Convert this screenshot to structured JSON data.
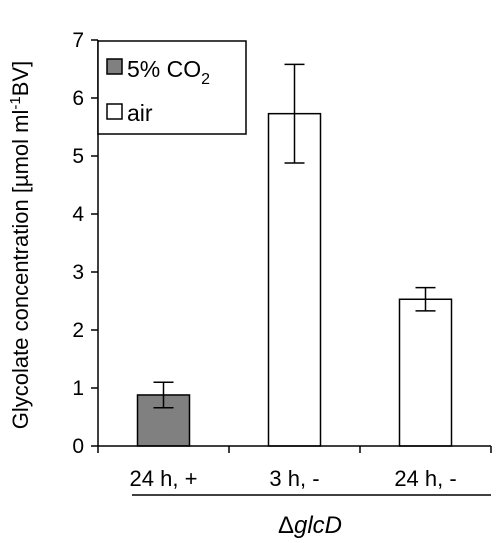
{
  "chart_data": {
    "type": "bar",
    "ylabel_main": "Glycolate concentration [µmol ml",
    "ylabel_sup": "-1",
    "ylabel_end": "BV]",
    "ylim": [
      0,
      7
    ],
    "yticks": [
      0,
      1,
      2,
      3,
      4,
      5,
      6,
      7
    ],
    "categories": [
      "24 h, +",
      "3 h, -",
      "24 h, -"
    ],
    "values": [
      0.88,
      5.73,
      2.53
    ],
    "errors": [
      0.22,
      0.85,
      0.2
    ],
    "condition": [
      "5% CO2",
      "air",
      "air"
    ],
    "group_label": {
      "prefix": "Δ",
      "name": "glcD"
    },
    "legend": [
      {
        "name": "5% CO2",
        "base": "5% CO",
        "sub": "2",
        "color": "#808080"
      },
      {
        "name": "air",
        "color": "#ffffff"
      }
    ],
    "legend_position": "top-left",
    "grid": false
  }
}
